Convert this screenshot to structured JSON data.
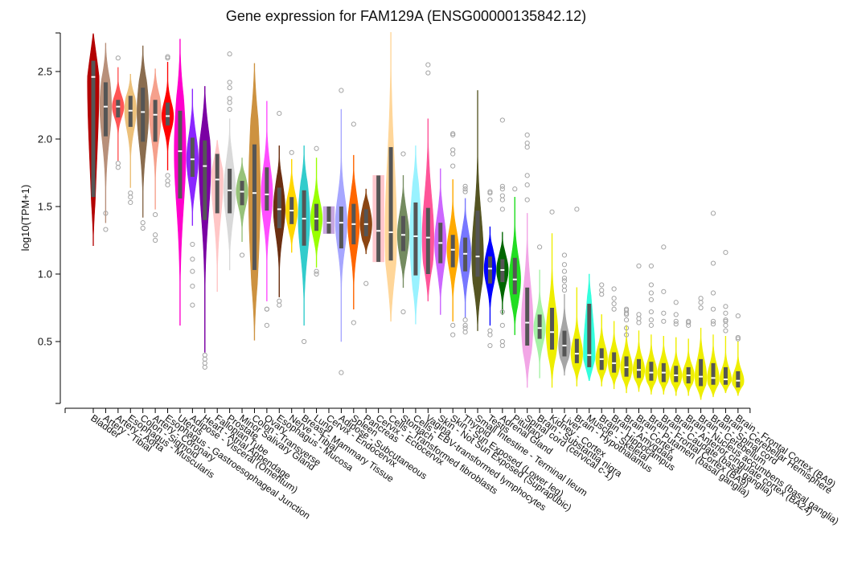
{
  "chart_data": {
    "type": "violin",
    "title": "Gene expression for FAM129A (ENSG00000135842.12)",
    "xlabel": "",
    "ylabel": "log10(TPM+1)",
    "ylim": [
      0.0,
      2.8
    ],
    "yticks": [
      0.5,
      1.0,
      1.5,
      2.0,
      2.5
    ],
    "yticklabels": [
      "0.5",
      "1.0",
      "1.5",
      "2.0",
      "2.5"
    ],
    "grid": false,
    "legend": "none",
    "series": [
      {
        "category": "Bladder",
        "color": "#b30000",
        "min": 1.21,
        "q1": 1.57,
        "median": 2.46,
        "q3": 2.58,
        "max": 2.78,
        "outliers": []
      },
      {
        "category": "Artery - Tibial",
        "color": "#b8907a",
        "min": 1.38,
        "q1": 2.02,
        "median": 2.24,
        "q3": 2.42,
        "max": 2.71,
        "outliers": [
          1.33,
          1.45
        ]
      },
      {
        "category": "Artery - Aorta",
        "color": "#ff5555",
        "min": 1.84,
        "q1": 2.16,
        "median": 2.24,
        "q3": 2.29,
        "max": 2.53,
        "outliers": [
          1.79,
          1.82,
          2.6
        ]
      },
      {
        "category": "Esophagus - Muscularis",
        "color": "#ecc07a",
        "min": 1.64,
        "q1": 2.09,
        "median": 2.21,
        "q3": 2.32,
        "max": 2.48,
        "outliers": [
          1.53,
          1.57,
          1.6
        ]
      },
      {
        "category": "Colon - Sigmoid",
        "color": "#8a6d4f",
        "min": 1.42,
        "q1": 1.98,
        "median": 2.2,
        "q3": 2.38,
        "max": 2.69,
        "outliers": [
          1.34,
          1.38
        ]
      },
      {
        "category": "Artery - Coronary",
        "color": "#f5a08c",
        "min": 1.48,
        "q1": 1.98,
        "median": 2.18,
        "q3": 2.29,
        "max": 2.52,
        "outliers": [
          1.25,
          1.29,
          1.44
        ]
      },
      {
        "category": "Esophagus - Gastroesophageal Junction",
        "color": "#ff0000",
        "min": 1.77,
        "q1": 2.1,
        "median": 2.17,
        "q3": 2.27,
        "max": 2.57,
        "outliers": [
          1.66,
          1.69,
          1.73,
          2.6,
          2.61
        ]
      },
      {
        "category": "Uterus",
        "color": "#ff00cc",
        "min": 0.62,
        "q1": 1.56,
        "median": 1.91,
        "q3": 2.21,
        "max": 2.74,
        "outliers": []
      },
      {
        "category": "Adipose - Visceral (Omentum)",
        "color": "#8b26ff",
        "min": 1.36,
        "q1": 1.72,
        "median": 1.85,
        "q3": 2.01,
        "max": 2.37,
        "outliers": [
          0.77,
          0.91,
          1.02,
          1.11,
          1.22
        ]
      },
      {
        "category": "Heart - Atrial Appendage",
        "color": "#7a00a3",
        "min": 0.42,
        "q1": 1.4,
        "median": 1.8,
        "q3": 1.99,
        "max": 2.39,
        "outliers": [
          0.31,
          0.34,
          0.37,
          0.4
        ]
      },
      {
        "category": "Fallopian Tube",
        "color": "#ffc6c6",
        "min": 0.87,
        "q1": 1.45,
        "median": 1.7,
        "q3": 1.89,
        "max": 1.99,
        "outliers": []
      },
      {
        "category": "Prostate",
        "color": "#d9d9d9",
        "min": 1.03,
        "q1": 1.45,
        "median": 1.62,
        "q3": 1.78,
        "max": 2.15,
        "outliers": [
          2.22,
          2.27,
          2.3,
          2.38,
          2.42,
          2.63
        ]
      },
      {
        "category": "Minor Salivary Gland",
        "color": "#97c27a",
        "min": 1.24,
        "q1": 1.51,
        "median": 1.61,
        "q3": 1.69,
        "max": 1.86,
        "outliers": [
          1.14
        ]
      },
      {
        "category": "Colon - Transverse",
        "color": "#cd9240",
        "min": 0.51,
        "q1": 1.03,
        "median": 1.6,
        "q3": 1.96,
        "max": 2.56,
        "outliers": []
      },
      {
        "category": "Ovary",
        "color": "#ff4dff",
        "min": 0.8,
        "q1": 1.47,
        "median": 1.59,
        "q3": 1.79,
        "max": 2.28,
        "outliers": [
          0.62,
          0.74,
          0.74
        ]
      },
      {
        "category": "Esophagus - Mucosa",
        "color": "#6b2e10",
        "min": 0.83,
        "q1": 1.34,
        "median": 1.48,
        "q3": 1.64,
        "max": 1.95,
        "outliers": [
          0.77,
          0.8,
          2.19
        ]
      },
      {
        "category": "Nerve - Tibial",
        "color": "#ffd700",
        "min": 1.16,
        "q1": 1.37,
        "median": 1.47,
        "q3": 1.57,
        "max": 1.85,
        "outliers": [
          1.9
        ]
      },
      {
        "category": "Breast - Mammary Tissue",
        "color": "#33cccc",
        "min": 0.62,
        "q1": 1.21,
        "median": 1.41,
        "q3": 1.62,
        "max": 1.95,
        "outliers": [
          0.5
        ]
      },
      {
        "category": "Lung",
        "color": "#99ff00",
        "min": 1.05,
        "q1": 1.32,
        "median": 1.41,
        "q3": 1.52,
        "max": 1.86,
        "outliers": [
          1.0,
          1.02,
          1.93
        ]
      },
      {
        "category": "Cervix - Endocervix",
        "color": "#c7a6e0",
        "min": 1.3,
        "q1": 1.3,
        "median": 1.38,
        "q3": 1.5,
        "max": 1.5,
        "outliers": []
      },
      {
        "category": "Adipose - Subcutaneous",
        "color": "#a6a6ff",
        "min": 0.5,
        "q1": 1.19,
        "median": 1.38,
        "q3": 1.5,
        "max": 2.22,
        "outliers": [
          0.27,
          2.36
        ]
      },
      {
        "category": "Spleen",
        "color": "#ff6600",
        "min": 0.74,
        "q1": 1.22,
        "median": 1.37,
        "q3": 1.52,
        "max": 1.88,
        "outliers": [
          0.64,
          2.11
        ]
      },
      {
        "category": "Pancreas",
        "color": "#8b4513",
        "min": 1.15,
        "q1": 1.28,
        "median": 1.37,
        "q3": 1.48,
        "max": 1.63,
        "outliers": [
          0.93
        ]
      },
      {
        "category": "Cervix - Ectocervix",
        "color": "#ffc6cc",
        "min": 1.09,
        "q1": 1.09,
        "median": 1.32,
        "q3": 1.73,
        "max": 1.73,
        "outliers": []
      },
      {
        "category": "Cells - Transformed fibroblasts",
        "color": "#ffd699",
        "min": 0.65,
        "q1": 1.1,
        "median": 1.31,
        "q3": 1.94,
        "max": 2.79,
        "outliers": []
      },
      {
        "category": "Stomach",
        "color": "#748b5f",
        "min": 0.9,
        "q1": 1.17,
        "median": 1.29,
        "q3": 1.43,
        "max": 1.73,
        "outliers": [
          0.72,
          1.89
        ]
      },
      {
        "category": "Cells - EBV-transformed lymphocytes",
        "color": "#99f2ff",
        "min": 0.63,
        "q1": 0.99,
        "median": 1.28,
        "q3": 1.53,
        "max": 1.95,
        "outliers": []
      },
      {
        "category": "Vagina",
        "color": "#ff5599",
        "min": 0.8,
        "q1": 1.0,
        "median": 1.27,
        "q3": 1.49,
        "max": 2.15,
        "outliers": [
          2.49,
          2.55
        ]
      },
      {
        "category": "Skin - Not Sun Exposed (Suprapubic)",
        "color": "#cc66ff",
        "min": 0.7,
        "q1": 1.08,
        "median": 1.23,
        "q3": 1.38,
        "max": 1.78,
        "outliers": []
      },
      {
        "category": "Skin - Sun Exposed (Lower leg)",
        "color": "#ffaa00",
        "min": 0.65,
        "q1": 1.05,
        "median": 1.18,
        "q3": 1.29,
        "max": 1.7,
        "outliers": [
          0.55,
          0.62,
          1.8,
          1.89,
          1.92,
          2.03,
          2.04
        ]
      },
      {
        "category": "Thyroid",
        "color": "#7777ff",
        "min": 0.68,
        "q1": 1.02,
        "median": 1.15,
        "q3": 1.27,
        "max": 1.56,
        "outliers": [
          0.57,
          0.6,
          0.62,
          0.66,
          1.61,
          1.63,
          1.65
        ]
      },
      {
        "category": "Small Intestine - Terminal Ileum",
        "color": "#555522",
        "min": 0.58,
        "q1": 0.98,
        "median": 1.13,
        "q3": 1.47,
        "max": 2.36,
        "outliers": []
      },
      {
        "category": "Testis",
        "color": "#0000ff",
        "min": 0.62,
        "q1": 0.93,
        "median": 1.04,
        "q3": 1.13,
        "max": 1.35,
        "outliers": [
          0.47,
          0.55,
          0.58,
          1.55,
          1.6,
          1.61
        ]
      },
      {
        "category": "Adrenal Gland",
        "color": "#006600",
        "min": 0.7,
        "q1": 0.94,
        "median": 1.03,
        "q3": 1.11,
        "max": 1.31,
        "outliers": [
          0.47,
          0.5,
          0.62,
          0.72,
          1.48,
          1.55,
          1.58,
          1.63,
          1.65,
          2.14
        ]
      },
      {
        "category": "Pituitary",
        "color": "#22dd22",
        "min": 0.55,
        "q1": 0.85,
        "median": 0.96,
        "q3": 1.12,
        "max": 1.57,
        "outliers": [
          1.63
        ]
      },
      {
        "category": "Spinal cord (cervical c-1)",
        "color": "#f2a6e6",
        "min": 0.16,
        "q1": 0.47,
        "median": 0.64,
        "q3": 0.9,
        "max": 1.45,
        "outliers": [
          1.55,
          1.66,
          1.73,
          1.94,
          1.97,
          2.03
        ]
      },
      {
        "category": "Brain - Substantia nigra",
        "color": "#a6f2a6",
        "min": 0.23,
        "q1": 0.52,
        "median": 0.6,
        "q3": 0.7,
        "max": 1.03,
        "outliers": [
          1.2
        ]
      },
      {
        "category": "Kidney - Cortex",
        "color": "#eeee00",
        "min": 0.16,
        "q1": 0.44,
        "median": 0.57,
        "q3": 0.75,
        "max": 1.3,
        "outliers": [
          1.46
        ]
      },
      {
        "category": "Liver",
        "color": "#a6a6a6",
        "min": 0.25,
        "q1": 0.39,
        "median": 0.47,
        "q3": 0.58,
        "max": 0.85,
        "outliers": [
          0.88,
          0.91,
          0.95,
          0.97,
          1.02,
          1.07,
          1.14
        ]
      },
      {
        "category": "Brain - Hypothalamus",
        "color": "#eeee00",
        "min": 0.17,
        "q1": 0.34,
        "median": 0.41,
        "q3": 0.52,
        "max": 0.9,
        "outliers": [
          1.48
        ]
      },
      {
        "category": "Muscle - Skeletal",
        "color": "#33ffdd",
        "min": 0.21,
        "q1": 0.31,
        "median": 0.4,
        "q3": 0.78,
        "max": 1.0,
        "outliers": []
      },
      {
        "category": "Brain - Hippocampus",
        "color": "#eeee00",
        "min": 0.17,
        "q1": 0.29,
        "median": 0.37,
        "q3": 0.45,
        "max": 0.7,
        "outliers": [
          0.85,
          0.88,
          0.92
        ]
      },
      {
        "category": "Brain - Amygdala",
        "color": "#eeee00",
        "min": 0.15,
        "q1": 0.27,
        "median": 0.34,
        "q3": 0.42,
        "max": 0.65,
        "outliers": [
          0.74,
          0.78,
          0.82,
          0.89
        ]
      },
      {
        "category": "Brain - Cortex",
        "color": "#eeee00",
        "min": 0.12,
        "q1": 0.24,
        "median": 0.31,
        "q3": 0.39,
        "max": 0.62,
        "outliers": [
          0.55,
          0.6,
          0.66,
          0.7,
          0.71,
          0.73,
          0.74
        ]
      },
      {
        "category": "Brain - Putamen (basal ganglia)",
        "color": "#eeee00",
        "min": 0.13,
        "q1": 0.23,
        "median": 0.29,
        "q3": 0.37,
        "max": 0.58,
        "outliers": [
          0.64,
          0.67,
          0.7,
          1.06
        ]
      },
      {
        "category": "Brain - Frontal Cortex (BA9)",
        "color": "#eeee00",
        "min": 0.11,
        "q1": 0.21,
        "median": 0.27,
        "q3": 0.35,
        "max": 0.55,
        "outliers": [
          0.62,
          0.66,
          0.72,
          0.81,
          0.86,
          0.92,
          1.06
        ]
      },
      {
        "category": "Brain - Caudate (basal ganglia)",
        "color": "#eeee00",
        "min": 0.11,
        "q1": 0.2,
        "median": 0.27,
        "q3": 0.34,
        "max": 0.54,
        "outliers": [
          0.65,
          0.71,
          0.87,
          1.2
        ]
      },
      {
        "category": "Brain - Anterior cingulate cortex (BA24)",
        "color": "#eeee00",
        "min": 0.1,
        "q1": 0.2,
        "median": 0.25,
        "q3": 0.32,
        "max": 0.53,
        "outliers": [
          0.63,
          0.65,
          0.7,
          0.79
        ]
      },
      {
        "category": "Brain - Nucleus accumbens (basal ganglia)",
        "color": "#eeee00",
        "min": 0.1,
        "q1": 0.19,
        "median": 0.25,
        "q3": 0.31,
        "max": 0.52,
        "outliers": [
          0.62,
          0.64,
          0.65
        ]
      },
      {
        "category": "Brain - Cerebellum",
        "color": "#eeee00",
        "min": 0.07,
        "q1": 0.17,
        "median": 0.24,
        "q3": 0.37,
        "max": 0.6,
        "outliers": [
          0.75,
          0.79,
          0.82
        ]
      },
      {
        "category": "Brain - Spinal cord",
        "color": "#eeee00",
        "min": 0.09,
        "q1": 0.18,
        "median": 0.23,
        "q3": 0.34,
        "max": 0.55,
        "outliers": [
          0.63,
          0.65,
          0.74,
          0.86,
          1.08,
          1.45
        ]
      },
      {
        "category": "Brain - Cerebellar Hemisphere",
        "color": "#eeee00",
        "min": 0.12,
        "q1": 0.18,
        "median": 0.22,
        "q3": 0.31,
        "max": 0.54,
        "outliers": [
          0.58,
          0.62,
          0.65,
          0.66,
          0.71,
          0.76,
          1.16
        ]
      },
      {
        "category": "Brain - Frontal Cortex (BA9)",
        "color": "#eeee00",
        "min": 0.1,
        "q1": 0.16,
        "median": 0.21,
        "q3": 0.28,
        "max": 0.5,
        "outliers": [
          0.52,
          0.53,
          0.69
        ]
      }
    ]
  }
}
